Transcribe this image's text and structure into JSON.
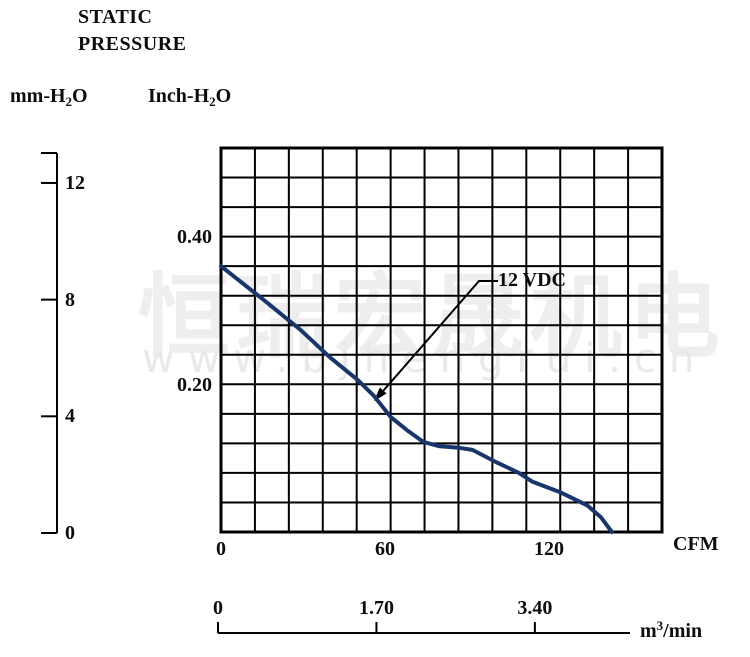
{
  "title": {
    "line1": "STATIC",
    "line2": "PRESSURE"
  },
  "axes": {
    "left_metric": {
      "unit": {
        "prefix": "mm-H",
        "sub": "2",
        "suffix": "O"
      },
      "ticks": [
        "12",
        "8",
        "4",
        "0"
      ]
    },
    "left_imperial": {
      "unit": {
        "prefix": "Inch-H",
        "sub": "2",
        "suffix": "O"
      },
      "ticks": [
        "0.40",
        "0.20"
      ]
    },
    "bottom_cfm": {
      "unit": "CFM",
      "ticks": [
        "0",
        "60",
        "120"
      ]
    },
    "bottom_metric": {
      "unit": {
        "prefix": "m",
        "sup": "3",
        "suffix": "/min"
      },
      "ticks": [
        "0",
        "1.70",
        "3.40"
      ]
    }
  },
  "series_label": "12 VDC",
  "watermark": {
    "cjk": "恒瑞宏晟机电",
    "url": "www.bjhengrui.cn"
  },
  "colors": {
    "curve": "#18366b",
    "grid": "#000000",
    "text": "#0d0d0d",
    "watermark": "#eeeeee"
  },
  "chart_data": {
    "type": "line",
    "title": "STATIC PRESSURE",
    "x_axis": {
      "label": "CFM",
      "ticks": [
        0,
        60,
        120
      ],
      "range": [
        0,
        161
      ]
    },
    "x_axis_secondary": {
      "label": "m3/min",
      "ticks": [
        0,
        1.7,
        3.4
      ]
    },
    "y_axis": {
      "label": "mm-H2O",
      "ticks": [
        0,
        4,
        8,
        12
      ],
      "range": [
        0,
        13
      ]
    },
    "y_axis_secondary": {
      "label": "Inch-H2O",
      "ticks": [
        0.2,
        0.4
      ]
    },
    "grid": {
      "cols": 13,
      "rows": 13,
      "grid_on": true
    },
    "legend_position": "annotation-arrow",
    "series": [
      {
        "name": "12 VDC",
        "x_unit": "CFM",
        "y_unit": "mm-H2O",
        "points": [
          [
            0,
            9.0
          ],
          [
            15,
            7.9
          ],
          [
            29,
            6.85
          ],
          [
            40,
            5.9
          ],
          [
            50,
            5.15
          ],
          [
            56,
            4.6
          ],
          [
            62,
            3.9
          ],
          [
            68,
            3.45
          ],
          [
            74,
            3.05
          ],
          [
            80,
            2.9
          ],
          [
            87,
            2.85
          ],
          [
            92,
            2.78
          ],
          [
            101,
            2.35
          ],
          [
            109,
            2.0
          ],
          [
            114,
            1.7
          ],
          [
            124,
            1.35
          ],
          [
            134,
            0.9
          ],
          [
            139,
            0.5
          ],
          [
            143,
            0.0
          ]
        ]
      }
    ]
  }
}
